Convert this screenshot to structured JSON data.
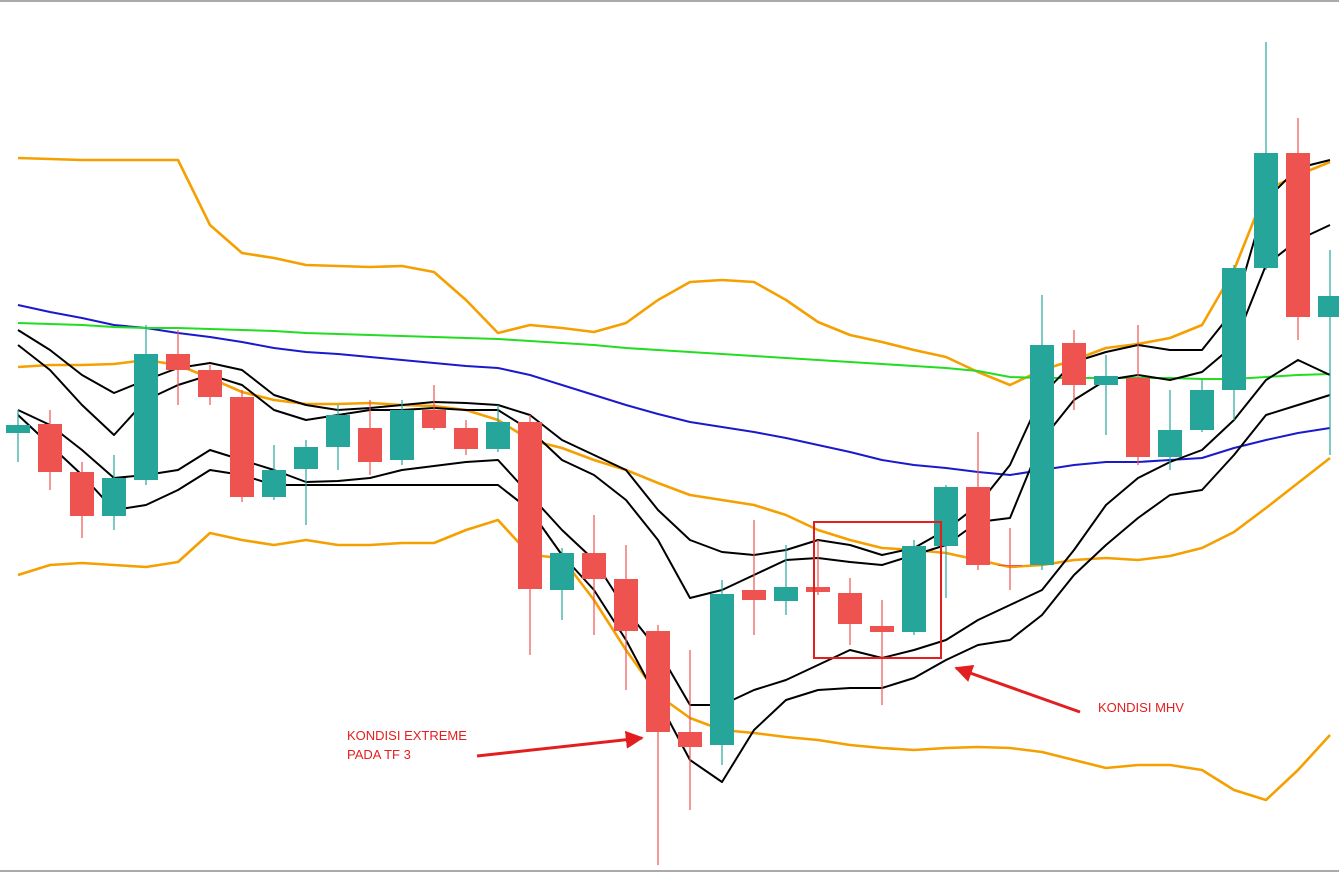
{
  "chart_data": {
    "type": "candlestick",
    "ylim": [
      0,
      873
    ],
    "categories": [
      null,
      null,
      null,
      null,
      null,
      null,
      null,
      null,
      null,
      null,
      null,
      null,
      null,
      null,
      null,
      null,
      null,
      null,
      null,
      null,
      null,
      null,
      null,
      null,
      null,
      null,
      null,
      null,
      null,
      null,
      null,
      null,
      null,
      null,
      null,
      null,
      null,
      null,
      null,
      null,
      null,
      null
    ],
    "up_color": "#26a69a",
    "down_color": "#ef5350",
    "open": [
      440,
      449,
      401,
      357,
      393,
      519,
      503,
      476,
      376,
      404,
      426,
      445,
      413,
      463,
      445,
      424,
      451,
      283,
      320,
      294,
      242,
      141,
      128,
      283,
      272,
      286,
      280,
      247,
      241,
      327,
      386,
      308,
      308,
      530,
      488,
      495,
      416,
      443,
      483,
      605,
      720,
      556
    ],
    "high": [
      463,
      463,
      411,
      418,
      548,
      543,
      508,
      483,
      428,
      433,
      468,
      473,
      473,
      488,
      453,
      468,
      458,
      325,
      358,
      328,
      248,
      223,
      293,
      353,
      328,
      333,
      295,
      273,
      333,
      388,
      441,
      345,
      578,
      543,
      518,
      548,
      483,
      493,
      608,
      831,
      755,
      623
    ],
    "low": [
      411,
      383,
      335,
      343,
      388,
      468,
      468,
      371,
      373,
      348,
      403,
      398,
      408,
      443,
      418,
      421,
      218,
      253,
      238,
      183,
      8,
      63,
      108,
      238,
      258,
      278,
      228,
      168,
      238,
      275,
      303,
      283,
      303,
      463,
      438,
      408,
      403,
      441,
      453,
      603,
      533,
      418
    ],
    "close": [
      448,
      401,
      357,
      395,
      519,
      503,
      476,
      376,
      403,
      426,
      458,
      411,
      463,
      445,
      424,
      451,
      284,
      320,
      294,
      242,
      141,
      126,
      279,
      273,
      286,
      281,
      249,
      241,
      327,
      386,
      308,
      307,
      528,
      488,
      497,
      416,
      443,
      483,
      605,
      720,
      556,
      577
    ],
    "lines": [
      {
        "color": "#f5a000",
        "width": 2.6,
        "values": [
          715,
          714,
          713,
          713,
          713,
          713,
          648,
          620,
          615,
          608,
          607,
          606,
          607,
          601,
          573,
          540,
          548,
          545,
          541,
          550,
          573,
          591,
          593,
          591,
          573,
          551,
          538,
          531,
          523,
          516,
          501,
          488,
          503,
          513,
          525,
          529,
          535,
          548,
          603,
          683,
          698,
          711
        ]
      },
      {
        "color": "#f5a000",
        "width": 2.6,
        "values": [
          506,
          508,
          508,
          509,
          513,
          508,
          495,
          481,
          473,
          469,
          469,
          470,
          468,
          467,
          463,
          453,
          433,
          425,
          413,
          403,
          390,
          378,
          373,
          368,
          358,
          343,
          333,
          325,
          323,
          320,
          313,
          306,
          308,
          313,
          315,
          313,
          317,
          325,
          341,
          365,
          390,
          415
        ]
      },
      {
        "color": "#f5a000",
        "width": 2.6,
        "values": [
          298,
          308,
          310,
          308,
          306,
          311,
          340,
          333,
          328,
          333,
          328,
          328,
          330,
          330,
          343,
          353,
          318,
          315,
          273,
          223,
          178,
          155,
          143,
          140,
          136,
          133,
          128,
          125,
          123,
          125,
          126,
          125,
          121,
          113,
          105,
          108,
          108,
          103,
          83,
          73,
          103,
          138
        ]
      },
      {
        "color": "#1a1acc",
        "width": 2,
        "values": [
          568,
          561,
          555,
          548,
          545,
          540,
          536,
          531,
          525,
          521,
          519,
          516,
          513,
          510,
          507,
          505,
          498,
          488,
          478,
          468,
          459,
          451,
          446,
          441,
          435,
          428,
          421,
          413,
          408,
          405,
          401,
          398,
          403,
          408,
          411,
          411,
          413,
          415,
          425,
          433,
          440,
          445
        ]
      },
      {
        "color": "#22dd22",
        "width": 2,
        "values": [
          550,
          549,
          548,
          546,
          545,
          545,
          544,
          543,
          542,
          540,
          539,
          538,
          537,
          536,
          535,
          534,
          532,
          530,
          528,
          525,
          523,
          521,
          519,
          517,
          515,
          513,
          511,
          509,
          507,
          505,
          502,
          496,
          495,
          495,
          495,
          495,
          495,
          494,
          494,
          496,
          498,
          499
        ]
      },
      {
        "color": "#000000",
        "width": 2,
        "values": [
          543,
          523,
          498,
          480,
          493,
          505,
          510,
          503,
          478,
          468,
          463,
          465,
          468,
          471,
          470,
          468,
          458,
          433,
          418,
          403,
          363,
          333,
          321,
          318,
          323,
          333,
          328,
          318,
          325,
          343,
          368,
          408,
          478,
          511,
          521,
          528,
          523,
          523,
          563,
          673,
          705,
          713
        ]
      },
      {
        "color": "#000000",
        "width": 2,
        "values": [
          528,
          503,
          468,
          438,
          473,
          488,
          498,
          488,
          463,
          453,
          458,
          463,
          463,
          465,
          463,
          463,
          443,
          413,
          398,
          373,
          333,
          275,
          283,
          298,
          313,
          315,
          311,
          308,
          318,
          328,
          351,
          355,
          433,
          473,
          493,
          498,
          493,
          501,
          528,
          608,
          633,
          648
        ]
      },
      {
        "color": "#000000",
        "width": 2,
        "values": [
          463,
          448,
          423,
          395,
          398,
          403,
          423,
          413,
          403,
          391,
          392,
          395,
          403,
          407,
          411,
          413,
          378,
          343,
          313,
          263,
          223,
          168,
          168,
          183,
          193,
          208,
          223,
          215,
          223,
          233,
          253,
          268,
          283,
          323,
          368,
          395,
          411,
          423,
          453,
          493,
          513,
          498
        ]
      },
      {
        "color": "#000000",
        "width": 2,
        "values": [
          458,
          428,
          398,
          363,
          368,
          383,
          403,
          398,
          388,
          388,
          388,
          388,
          388,
          388,
          388,
          388,
          363,
          318,
          283,
          233,
          173,
          113,
          91,
          143,
          173,
          183,
          185,
          185,
          195,
          213,
          228,
          233,
          258,
          298,
          328,
          355,
          378,
          383,
          418,
          458,
          468,
          478
        ]
      }
    ],
    "annotations": [
      "KONDISI EXTREME",
      "PADA TF 3",
      "KONDISI MHV"
    ]
  }
}
